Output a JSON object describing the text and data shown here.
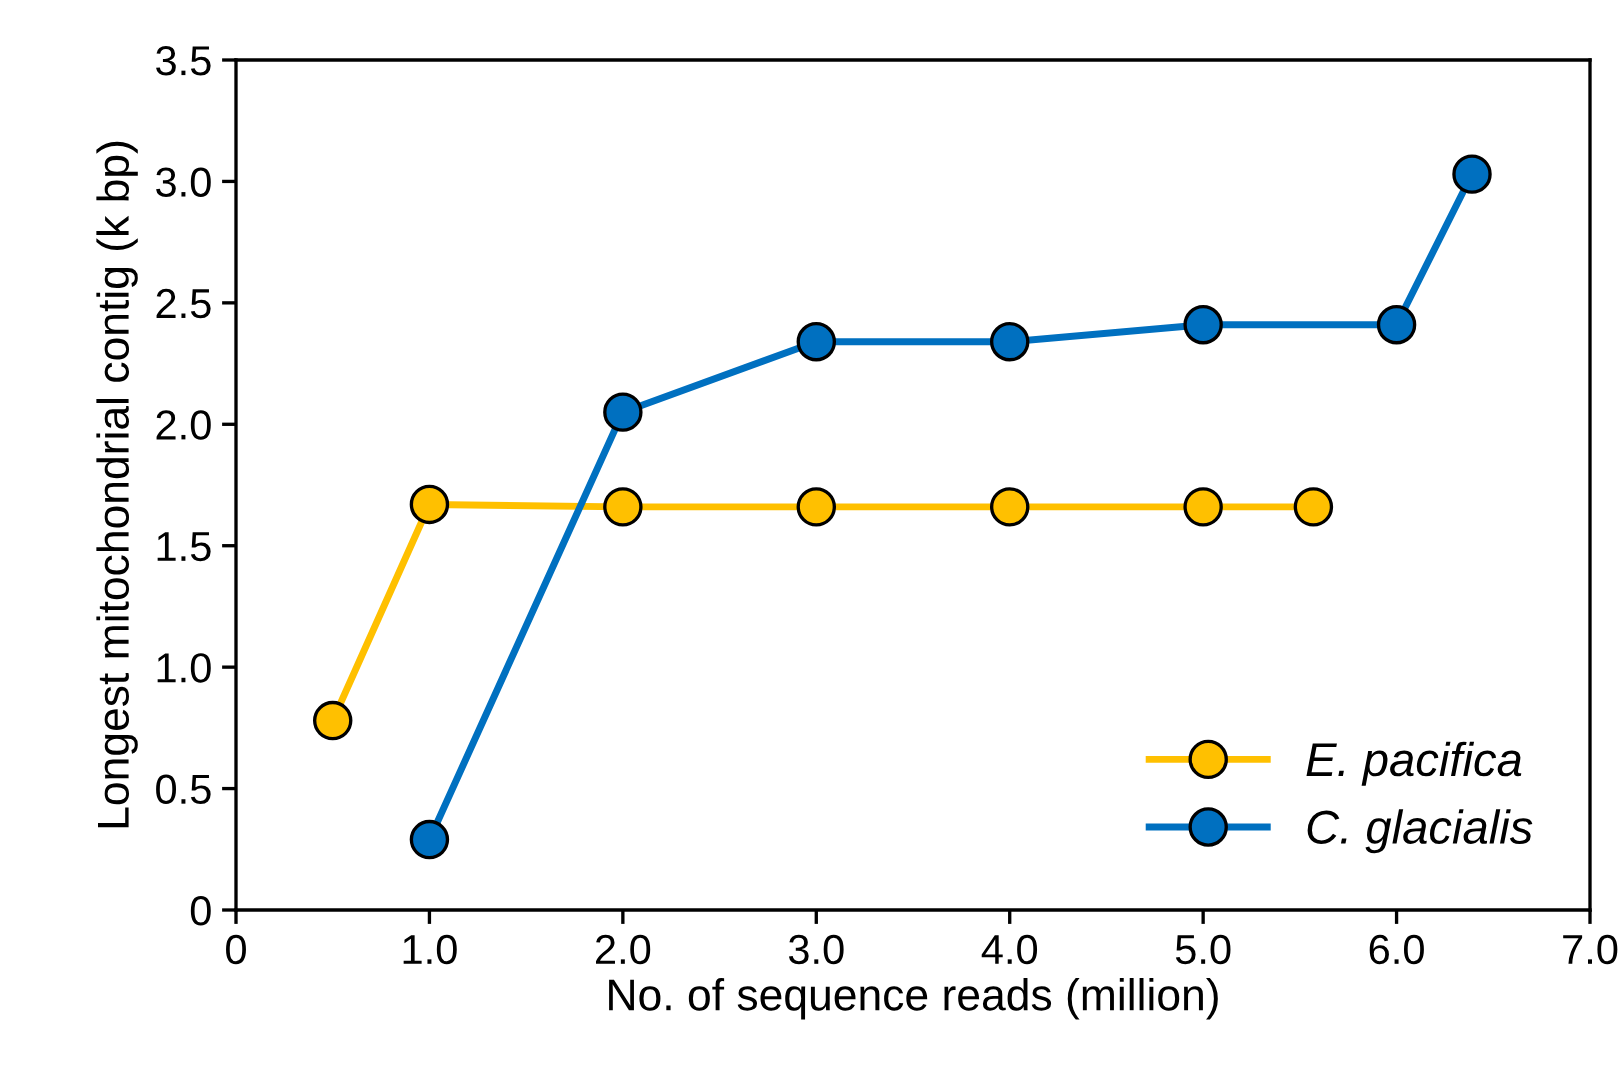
{
  "chart_data": {
    "type": "line",
    "xlabel": "No. of sequence reads (million)",
    "ylabel": "Longest mitochondrial contig (k bp)",
    "xlim": [
      0,
      7
    ],
    "xticks": [
      0,
      {
        "value": 1,
        "label": "1.0"
      },
      {
        "value": 2,
        "label": "2.0"
      },
      {
        "value": 3,
        "label": "3.0"
      },
      {
        "value": 4,
        "label": "4.0"
      },
      {
        "value": 5,
        "label": "5.0"
      },
      {
        "value": 6,
        "label": "6.0"
      },
      {
        "value": 7,
        "label": "7.0"
      }
    ],
    "ylim": [
      0,
      3.5
    ],
    "yticks": [
      0,
      {
        "value": 0.5,
        "label": "0.5"
      },
      {
        "value": 1,
        "label": "1.0"
      },
      {
        "value": 1.5,
        "label": "1.5"
      },
      {
        "value": 2,
        "label": "2.0"
      },
      {
        "value": 2.5,
        "label": "2.5"
      },
      {
        "value": 3,
        "label": "3.0"
      },
      {
        "value": 3.5,
        "label": "3.5"
      }
    ],
    "grid": false,
    "legend": "bottom right",
    "marker": "circle",
    "line_style": "solid",
    "series": [
      {
        "name": "E. pacifica",
        "color": "#ffc000",
        "x": [
          0.5,
          1,
          2,
          3,
          4,
          5,
          5.57
        ],
        "values": [
          0.78,
          1.67,
          1.66,
          1.66,
          1.66,
          1.66,
          1.66
        ]
      },
      {
        "name": "C. glacialis",
        "color": "#0070c0",
        "x": [
          1,
          2,
          3,
          4,
          5,
          6,
          6.39
        ],
        "values": [
          0.29,
          2.05,
          2.34,
          2.34,
          2.41,
          2.41,
          3.03
        ]
      }
    ]
  }
}
